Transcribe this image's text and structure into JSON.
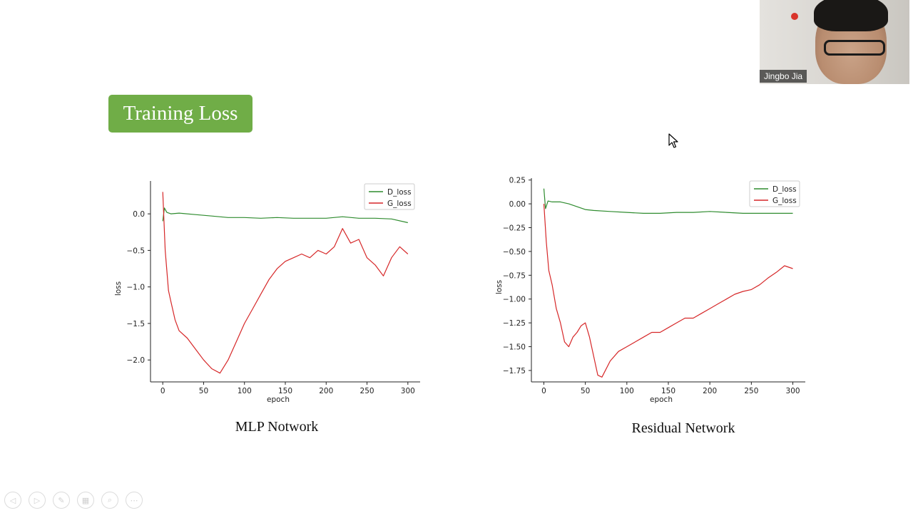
{
  "slide": {
    "title": "Training Loss",
    "colors": {
      "title_bg": "#70ad47",
      "d_loss": "#2e8b2e",
      "g_loss": "#d62728"
    }
  },
  "chart_data": [
    {
      "type": "line",
      "caption": "MLP Notwork",
      "xlabel": "epoch",
      "ylabel": "loss",
      "xlim": [
        -15,
        315
      ],
      "ylim": [
        -2.3,
        0.45
      ],
      "xticks": [
        0,
        50,
        100,
        150,
        200,
        250,
        300
      ],
      "yticks": [
        0.0,
        -0.5,
        -1.0,
        -1.5,
        -2.0
      ],
      "ytick_labels": [
        "0.0",
        "−0.5",
        "−1.0",
        "−1.5",
        "−2.0"
      ],
      "legend_position": "top-right",
      "series": [
        {
          "name": "D_loss",
          "color": "#2e8b2e",
          "x": [
            0,
            2,
            5,
            10,
            20,
            40,
            60,
            80,
            100,
            120,
            140,
            160,
            180,
            200,
            220,
            240,
            260,
            280,
            300
          ],
          "y": [
            -0.1,
            0.08,
            0.02,
            0.0,
            0.01,
            -0.01,
            -0.03,
            -0.05,
            -0.05,
            -0.06,
            -0.05,
            -0.06,
            -0.06,
            -0.06,
            -0.04,
            -0.06,
            -0.06,
            -0.07,
            -0.12
          ]
        },
        {
          "name": "G_loss",
          "color": "#d62728",
          "x": [
            0,
            3,
            7,
            10,
            15,
            20,
            30,
            40,
            50,
            60,
            70,
            80,
            90,
            100,
            110,
            120,
            130,
            140,
            150,
            160,
            170,
            180,
            190,
            200,
            210,
            220,
            230,
            240,
            250,
            260,
            270,
            280,
            290,
            300
          ],
          "y": [
            0.3,
            -0.5,
            -1.05,
            -1.2,
            -1.45,
            -1.6,
            -1.7,
            -1.85,
            -2.0,
            -2.12,
            -2.18,
            -2.0,
            -1.75,
            -1.5,
            -1.3,
            -1.1,
            -0.9,
            -0.75,
            -0.65,
            -0.6,
            -0.55,
            -0.6,
            -0.5,
            -0.55,
            -0.45,
            -0.2,
            -0.4,
            -0.35,
            -0.6,
            -0.7,
            -0.85,
            -0.6,
            -0.45,
            -0.55
          ]
        }
      ]
    },
    {
      "type": "line",
      "caption": "Residual Network",
      "xlabel": "epoch",
      "ylabel": "loss",
      "xlim": [
        -15,
        315
      ],
      "ylim": [
        -1.87,
        0.27
      ],
      "xticks": [
        0,
        50,
        100,
        150,
        200,
        250,
        300
      ],
      "yticks": [
        0.25,
        0.0,
        -0.25,
        -0.5,
        -0.75,
        -1.0,
        -1.25,
        -1.5,
        -1.75
      ],
      "ytick_labels": [
        "0.25",
        "0.00",
        "−0.25",
        "−0.50",
        "−0.75",
        "−1.00",
        "−1.25",
        "−1.50",
        "−1.75"
      ],
      "legend_position": "top-right",
      "series": [
        {
          "name": "D_loss",
          "color": "#2e8b2e",
          "x": [
            0,
            2,
            5,
            10,
            20,
            30,
            40,
            50,
            60,
            80,
            100,
            120,
            140,
            160,
            180,
            200,
            220,
            240,
            260,
            280,
            300
          ],
          "y": [
            0.16,
            -0.05,
            0.03,
            0.02,
            0.02,
            0.0,
            -0.03,
            -0.06,
            -0.07,
            -0.08,
            -0.09,
            -0.1,
            -0.1,
            -0.09,
            -0.09,
            -0.08,
            -0.09,
            -0.1,
            -0.1,
            -0.1,
            -0.1
          ]
        },
        {
          "name": "G_loss",
          "color": "#d62728",
          "x": [
            0,
            3,
            6,
            10,
            15,
            20,
            25,
            30,
            35,
            40,
            45,
            50,
            55,
            60,
            65,
            70,
            80,
            90,
            100,
            110,
            120,
            130,
            140,
            150,
            160,
            170,
            180,
            190,
            200,
            210,
            220,
            230,
            240,
            250,
            260,
            270,
            280,
            290,
            300
          ],
          "y": [
            0.0,
            -0.4,
            -0.7,
            -0.85,
            -1.1,
            -1.25,
            -1.45,
            -1.5,
            -1.4,
            -1.35,
            -1.28,
            -1.25,
            -1.4,
            -1.6,
            -1.8,
            -1.82,
            -1.65,
            -1.55,
            -1.5,
            -1.45,
            -1.4,
            -1.35,
            -1.35,
            -1.3,
            -1.25,
            -1.2,
            -1.2,
            -1.15,
            -1.1,
            -1.05,
            -1.0,
            -0.95,
            -0.92,
            -0.9,
            -0.85,
            -0.78,
            -0.72,
            -0.65,
            -0.68
          ]
        }
      ]
    }
  ],
  "participant": {
    "name": "Jingbo Jia"
  },
  "toolbar": {
    "buttons": [
      {
        "icon": "prev-arrow-icon",
        "glyph": "◁"
      },
      {
        "icon": "next-arrow-icon",
        "glyph": "▷"
      },
      {
        "icon": "pen-icon",
        "glyph": "✎"
      },
      {
        "icon": "slides-grid-icon",
        "glyph": "▦"
      },
      {
        "icon": "zoom-icon",
        "glyph": "⌕"
      },
      {
        "icon": "more-icon",
        "glyph": "⋯"
      }
    ]
  }
}
